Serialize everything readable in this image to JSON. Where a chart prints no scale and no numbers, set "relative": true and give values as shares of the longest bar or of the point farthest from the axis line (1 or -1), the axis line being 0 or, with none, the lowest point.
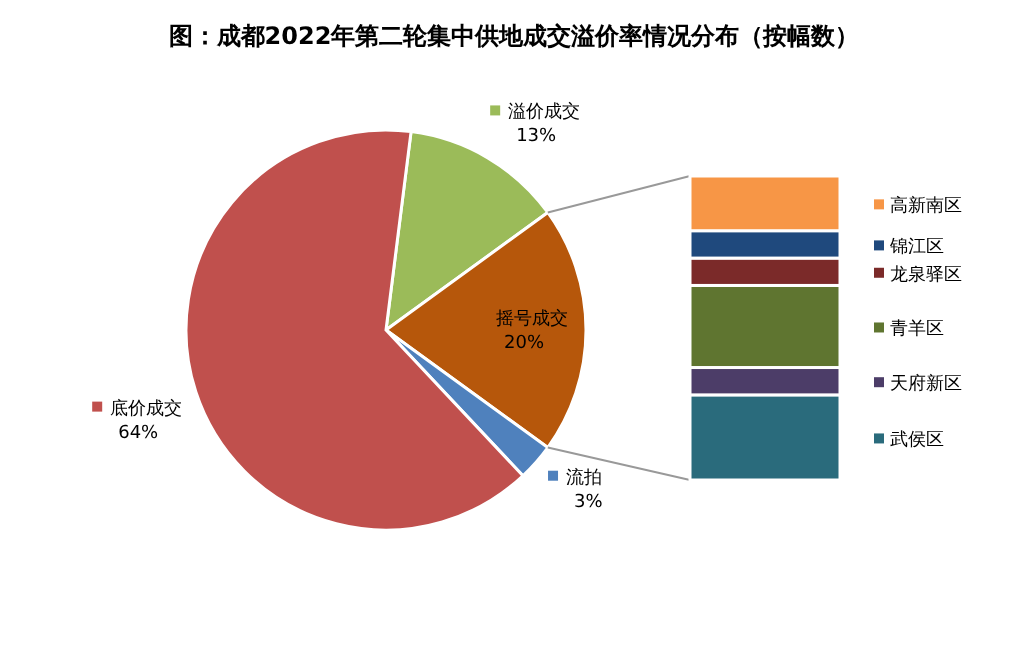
{
  "chart_data": [
    {
      "type": "pie",
      "title": "图：成都2022年第二轮集中供地成交溢价率情况分布（按幅数）",
      "categories": [
        "溢价成交",
        "摇号成交",
        "流拍",
        "底价成交"
      ],
      "values": [
        13,
        20,
        3,
        64
      ],
      "colors": [
        "#9bbb59",
        "#b6570b",
        "#4f81bd",
        "#c0504d"
      ],
      "value_labels": [
        "13%",
        "20%",
        "3%",
        "64%"
      ],
      "legend": "top left"
    },
    {
      "type": "bar",
      "stacked": true,
      "relative": true,
      "categories": [
        null
      ],
      "legend": "right",
      "series": [
        {
          "name": "武侯区",
          "color": "#2a6b7c",
          "values": [
            0.28
          ]
        },
        {
          "name": "天府新区",
          "color": "#4c3d68",
          "values": [
            0.09
          ]
        },
        {
          "name": "青羊区",
          "color": "#5f7530",
          "values": [
            0.27
          ]
        },
        {
          "name": "龙泉驿区",
          "color": "#7b2a29",
          "values": [
            0.09
          ]
        },
        {
          "name": "锦江区",
          "color": "#1f497d",
          "values": [
            0.09
          ]
        },
        {
          "name": "高新南区",
          "color": "#f79646",
          "values": [
            0.18
          ]
        }
      ]
    }
  ]
}
